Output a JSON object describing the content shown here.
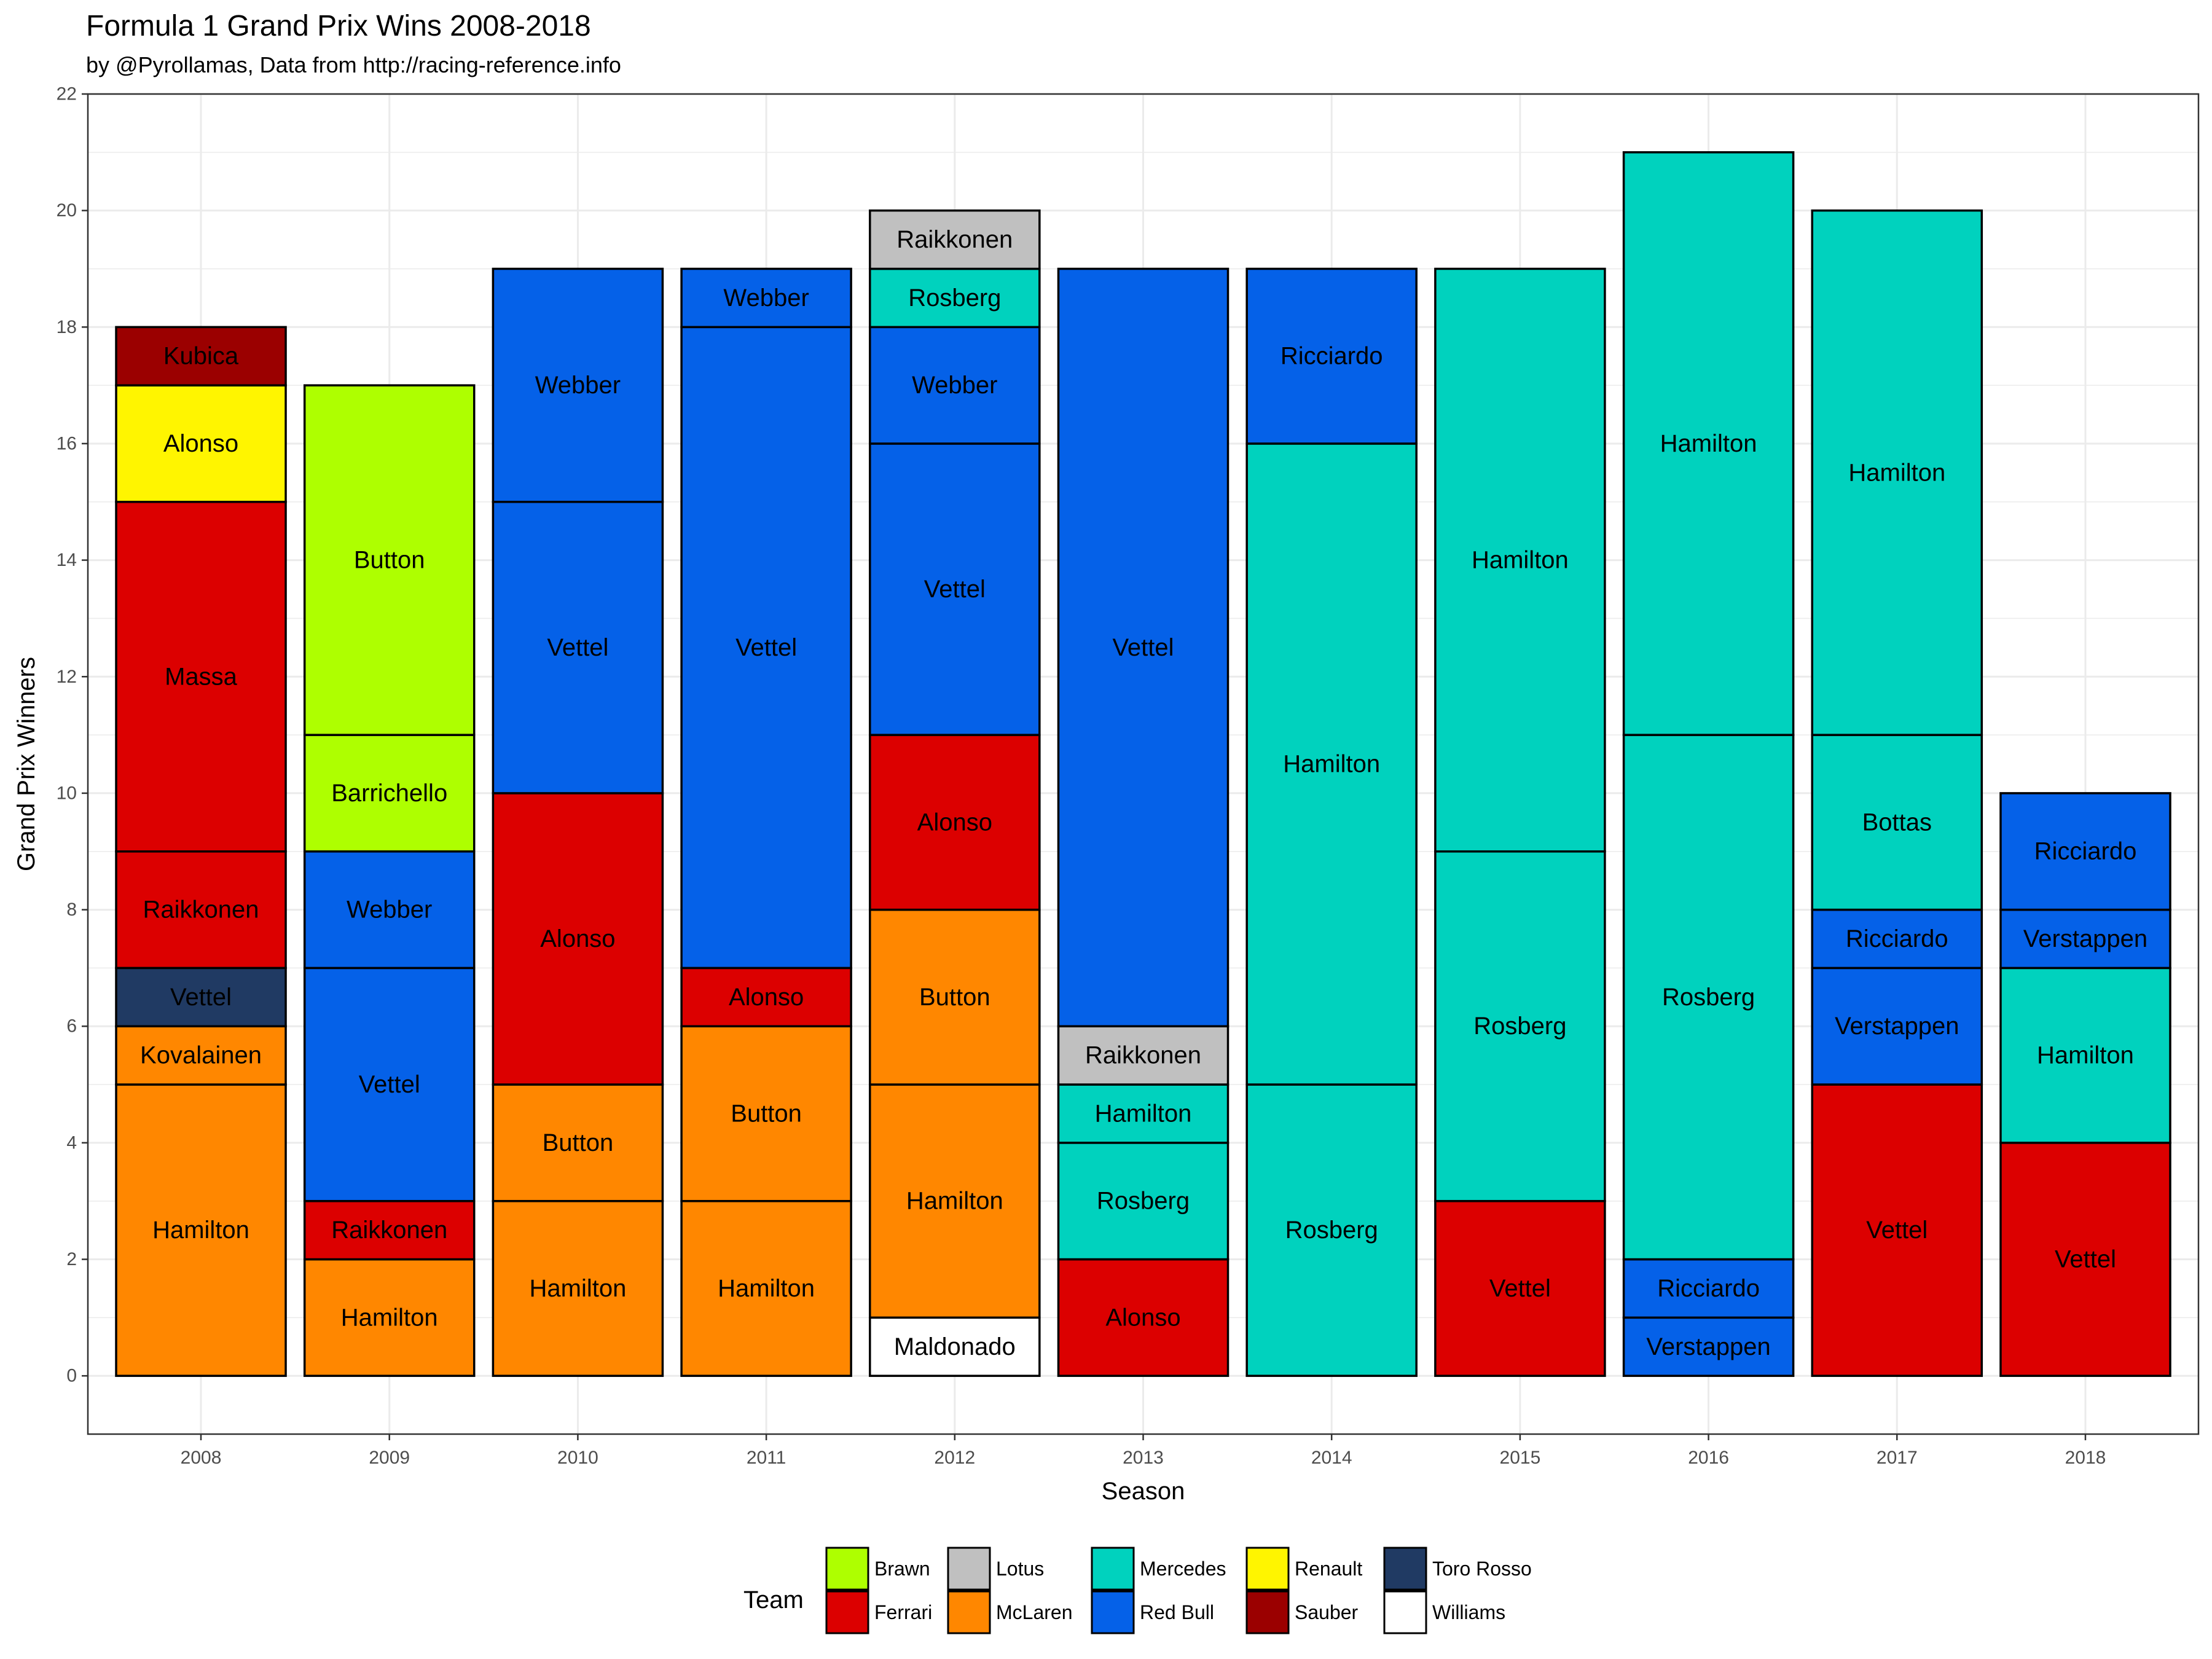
{
  "chart_data": {
    "type": "bar",
    "stacked": true,
    "title": "Formula 1 Grand Prix Wins 2008-2018",
    "subtitle": "by @Pyrollamas, Data from http://racing-reference.info",
    "xlabel": "Season",
    "ylabel": "Grand Prix Winners",
    "ylim": [
      -1,
      22
    ],
    "y_ticks": [
      0,
      2,
      4,
      6,
      8,
      10,
      12,
      14,
      16,
      18,
      20,
      22
    ],
    "grid": true,
    "legend_title": "Team",
    "legend_position": "bottom",
    "categories": [
      "2008",
      "2009",
      "2010",
      "2011",
      "2012",
      "2013",
      "2014",
      "2015",
      "2016",
      "2017",
      "2018"
    ],
    "teams": [
      {
        "name": "Brawn",
        "color": "#AEFF00"
      },
      {
        "name": "Ferrari",
        "color": "#DC0000"
      },
      {
        "name": "Lotus",
        "color": "#C0C0C0"
      },
      {
        "name": "McLaren",
        "color": "#FF8700"
      },
      {
        "name": "Mercedes",
        "color": "#00D2BE"
      },
      {
        "name": "Red Bull",
        "color": "#0561E8"
      },
      {
        "name": "Renault",
        "color": "#FFF500"
      },
      {
        "name": "Sauber",
        "color": "#9B0000"
      },
      {
        "name": "Toro Rosso",
        "color": "#203A63"
      },
      {
        "name": "Williams",
        "color": "#FFFFFF"
      }
    ],
    "stacks": [
      {
        "season": "2008",
        "segments": [
          {
            "driver": "Hamilton",
            "team": "McLaren",
            "wins": 5
          },
          {
            "driver": "Kovalainen",
            "team": "McLaren",
            "wins": 1
          },
          {
            "driver": "Vettel",
            "team": "Toro Rosso",
            "wins": 1
          },
          {
            "driver": "Raikkonen",
            "team": "Ferrari",
            "wins": 2
          },
          {
            "driver": "Massa",
            "team": "Ferrari",
            "wins": 6
          },
          {
            "driver": "Alonso",
            "team": "Renault",
            "wins": 2
          },
          {
            "driver": "Kubica",
            "team": "Sauber",
            "wins": 1
          }
        ]
      },
      {
        "season": "2009",
        "segments": [
          {
            "driver": "Hamilton",
            "team": "McLaren",
            "wins": 2
          },
          {
            "driver": "Raikkonen",
            "team": "Ferrari",
            "wins": 1
          },
          {
            "driver": "Vettel",
            "team": "Red Bull",
            "wins": 4
          },
          {
            "driver": "Webber",
            "team": "Red Bull",
            "wins": 2
          },
          {
            "driver": "Barrichello",
            "team": "Brawn",
            "wins": 2
          },
          {
            "driver": "Button",
            "team": "Brawn",
            "wins": 6
          }
        ]
      },
      {
        "season": "2010",
        "segments": [
          {
            "driver": "Hamilton",
            "team": "McLaren",
            "wins": 3
          },
          {
            "driver": "Button",
            "team": "McLaren",
            "wins": 2
          },
          {
            "driver": "Alonso",
            "team": "Ferrari",
            "wins": 5
          },
          {
            "driver": "Vettel",
            "team": "Red Bull",
            "wins": 5
          },
          {
            "driver": "Webber",
            "team": "Red Bull",
            "wins": 4
          }
        ]
      },
      {
        "season": "2011",
        "segments": [
          {
            "driver": "Hamilton",
            "team": "McLaren",
            "wins": 3
          },
          {
            "driver": "Button",
            "team": "McLaren",
            "wins": 3
          },
          {
            "driver": "Alonso",
            "team": "Ferrari",
            "wins": 1
          },
          {
            "driver": "Vettel",
            "team": "Red Bull",
            "wins": 11
          },
          {
            "driver": "Webber",
            "team": "Red Bull",
            "wins": 1
          }
        ]
      },
      {
        "season": "2012",
        "segments": [
          {
            "driver": "Maldonado",
            "team": "Williams",
            "wins": 1
          },
          {
            "driver": "Hamilton",
            "team": "McLaren",
            "wins": 4
          },
          {
            "driver": "Button",
            "team": "McLaren",
            "wins": 3
          },
          {
            "driver": "Alonso",
            "team": "Ferrari",
            "wins": 3
          },
          {
            "driver": "Vettel",
            "team": "Red Bull",
            "wins": 5
          },
          {
            "driver": "Webber",
            "team": "Red Bull",
            "wins": 2
          },
          {
            "driver": "Rosberg",
            "team": "Mercedes",
            "wins": 1
          },
          {
            "driver": "Raikkonen",
            "team": "Lotus",
            "wins": 1
          }
        ]
      },
      {
        "season": "2013",
        "segments": [
          {
            "driver": "Alonso",
            "team": "Ferrari",
            "wins": 2
          },
          {
            "driver": "Rosberg",
            "team": "Mercedes",
            "wins": 2
          },
          {
            "driver": "Hamilton",
            "team": "Mercedes",
            "wins": 1
          },
          {
            "driver": "Raikkonen",
            "team": "Lotus",
            "wins": 1
          },
          {
            "driver": "Vettel",
            "team": "Red Bull",
            "wins": 13
          }
        ]
      },
      {
        "season": "2014",
        "segments": [
          {
            "driver": "Rosberg",
            "team": "Mercedes",
            "wins": 5
          },
          {
            "driver": "Hamilton",
            "team": "Mercedes",
            "wins": 11
          },
          {
            "driver": "Ricciardo",
            "team": "Red Bull",
            "wins": 3
          }
        ]
      },
      {
        "season": "2015",
        "segments": [
          {
            "driver": "Vettel",
            "team": "Ferrari",
            "wins": 3
          },
          {
            "driver": "Rosberg",
            "team": "Mercedes",
            "wins": 6
          },
          {
            "driver": "Hamilton",
            "team": "Mercedes",
            "wins": 10
          }
        ]
      },
      {
        "season": "2016",
        "segments": [
          {
            "driver": "Verstappen",
            "team": "Red Bull",
            "wins": 1
          },
          {
            "driver": "Ricciardo",
            "team": "Red Bull",
            "wins": 1
          },
          {
            "driver": "Rosberg",
            "team": "Mercedes",
            "wins": 9
          },
          {
            "driver": "Hamilton",
            "team": "Mercedes",
            "wins": 10
          }
        ]
      },
      {
        "season": "2017",
        "segments": [
          {
            "driver": "Vettel",
            "team": "Ferrari",
            "wins": 5
          },
          {
            "driver": "Verstappen",
            "team": "Red Bull",
            "wins": 2
          },
          {
            "driver": "Ricciardo",
            "team": "Red Bull",
            "wins": 1
          },
          {
            "driver": "Bottas",
            "team": "Mercedes",
            "wins": 3
          },
          {
            "driver": "Hamilton",
            "team": "Mercedes",
            "wins": 9
          }
        ]
      },
      {
        "season": "2018",
        "segments": [
          {
            "driver": "Vettel",
            "team": "Ferrari",
            "wins": 4
          },
          {
            "driver": "Hamilton",
            "team": "Mercedes",
            "wins": 3
          },
          {
            "driver": "Verstappen",
            "team": "Red Bull",
            "wins": 1
          },
          {
            "driver": "Ricciardo",
            "team": "Red Bull",
            "wins": 2
          }
        ]
      }
    ]
  }
}
